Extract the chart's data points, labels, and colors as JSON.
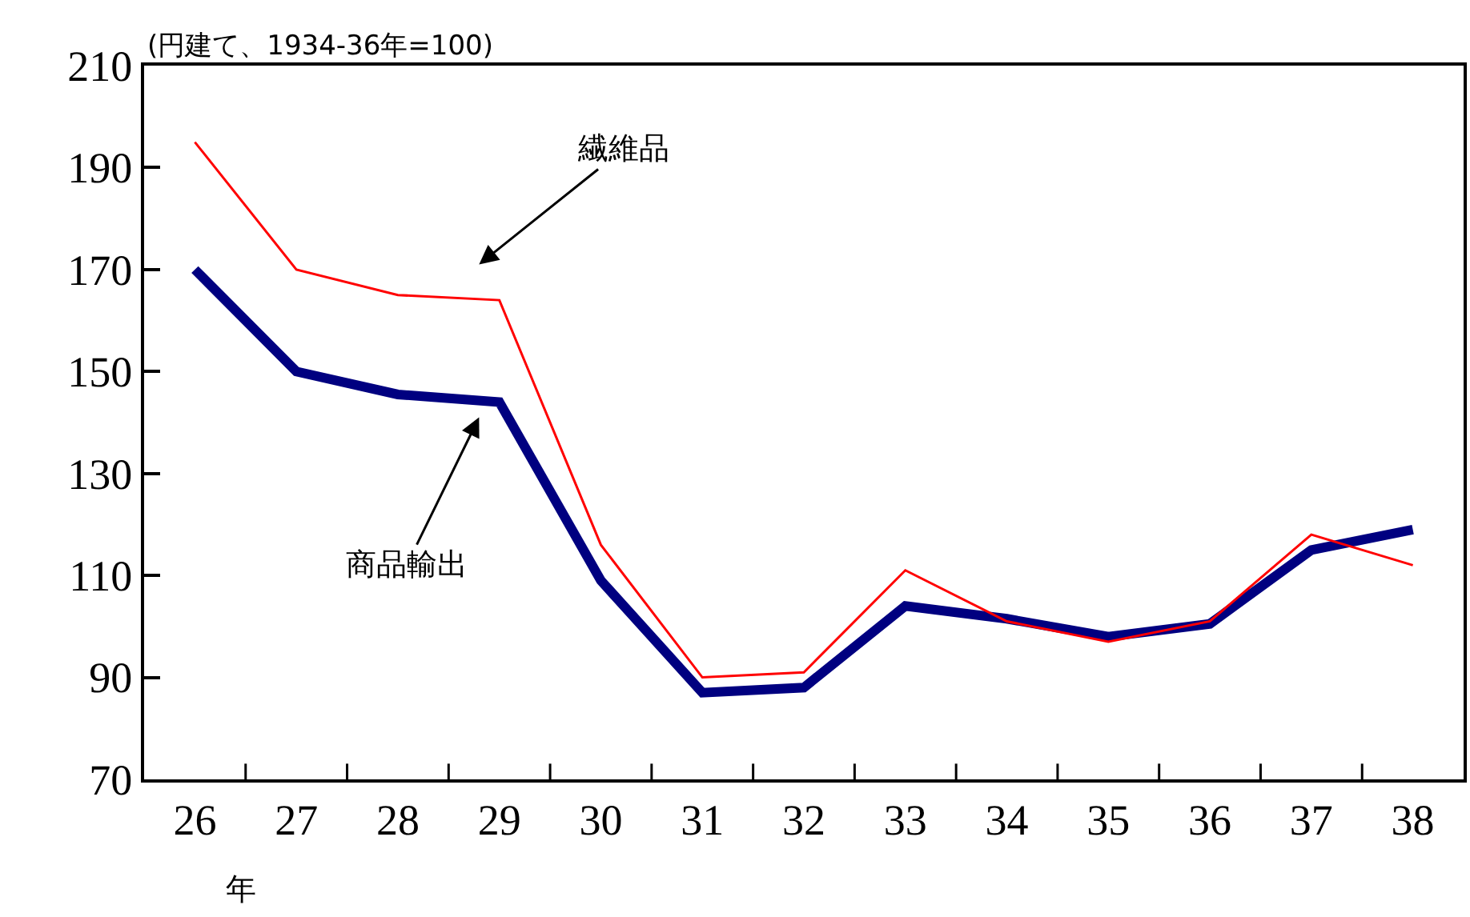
{
  "chart_data": {
    "type": "line",
    "ylabel": "(円建て、1934-36年=100)",
    "categories": [
      "26",
      "27",
      "28",
      "29",
      "30",
      "31",
      "32",
      "33",
      "34",
      "35",
      "36",
      "37",
      "38"
    ],
    "series": [
      {
        "color": "#ff0000",
        "values": [
          195,
          170,
          165,
          164,
          116,
          90,
          91,
          111,
          101,
          97,
          101,
          118,
          112
        ]
      },
      {
        "color": "#000080",
        "values": [
          170,
          150,
          145.5,
          144,
          109,
          87,
          88,
          104,
          101.5,
          98,
          100.5,
          115,
          119
        ]
      }
    ],
    "ylim": [
      70,
      210
    ],
    "yticks": [
      70,
      90,
      110,
      130,
      150,
      170,
      190,
      210
    ],
    "annotations": [
      "繊維品",
      "商品輸出",
      "年"
    ],
    "marker": "none",
    "line_style": "solid"
  }
}
